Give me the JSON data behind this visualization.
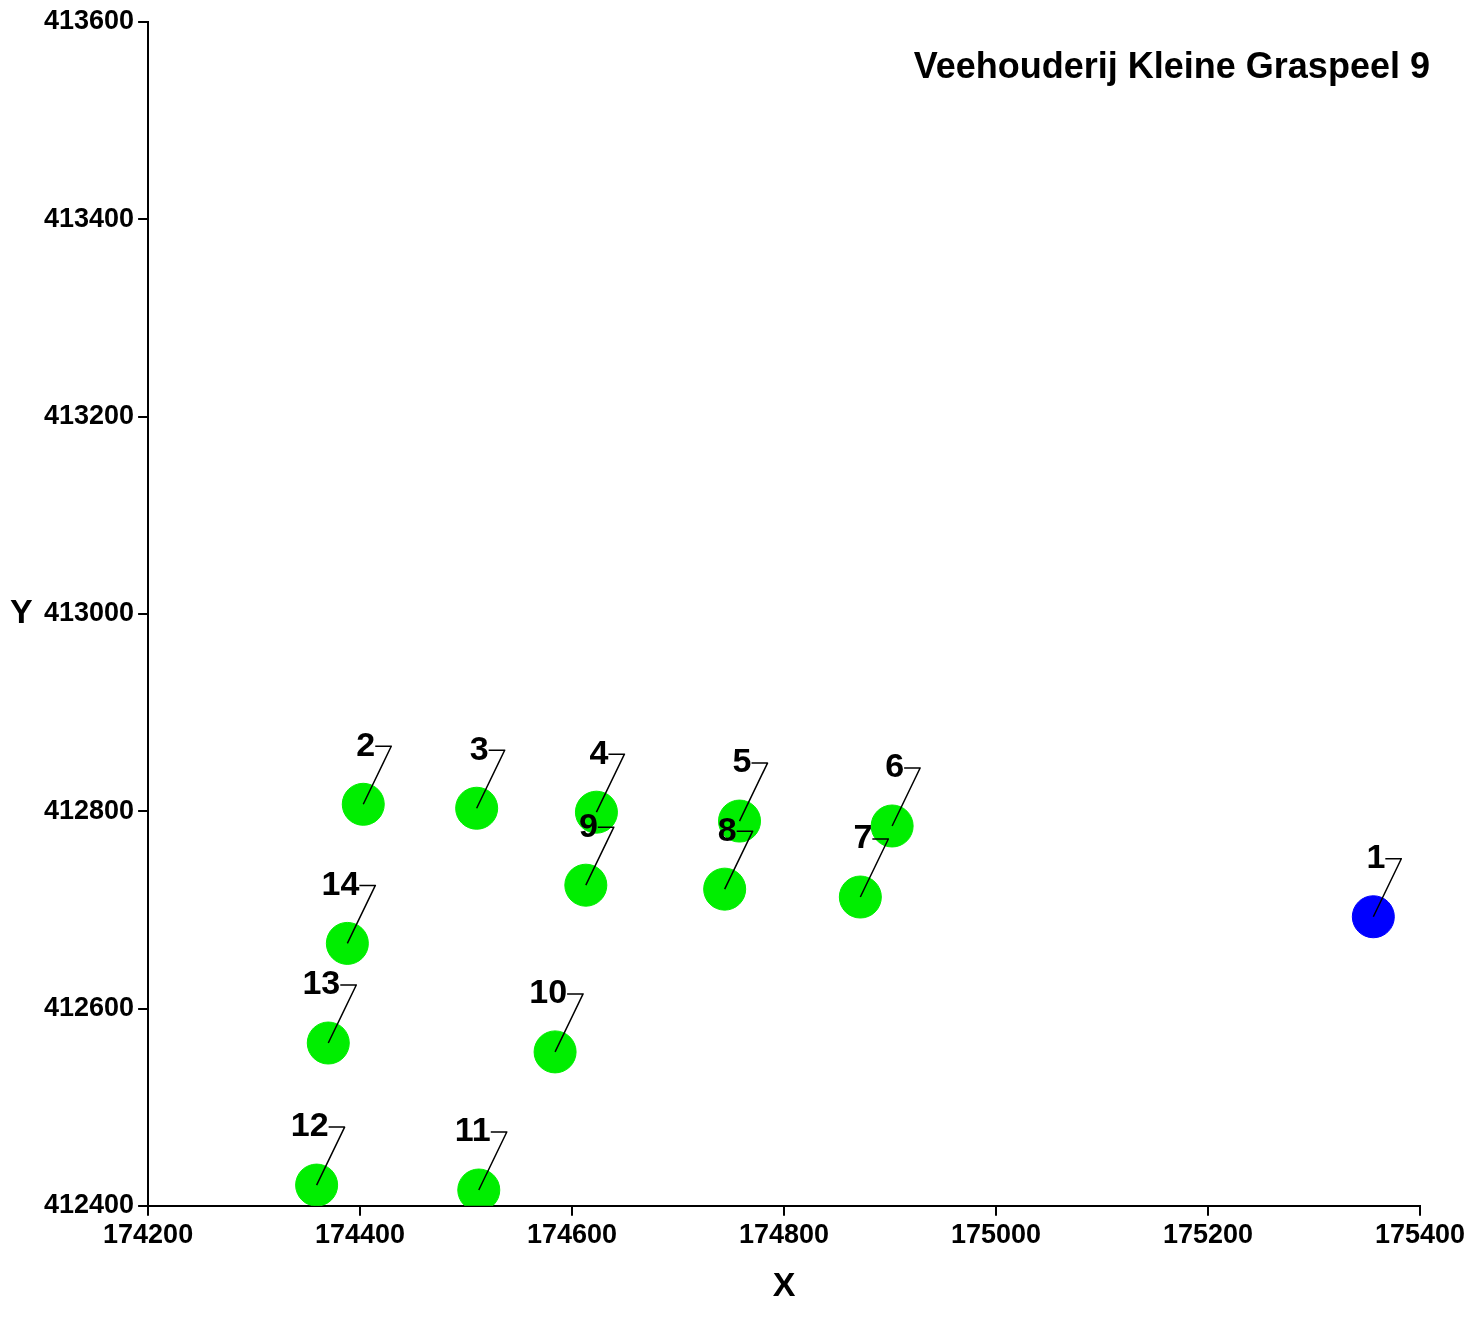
{
  "chart_data": {
    "type": "scatter",
    "title": "Veehouderij Kleine Graspeel 9",
    "xlabel": "X",
    "ylabel": "Y",
    "x": [
      175356,
      174403,
      174510,
      174623,
      174758,
      174902,
      174872,
      174744,
      174613,
      174584,
      174512,
      174359,
      174370,
      174388
    ],
    "series": [
      {
        "values": [
          412693,
          412807,
          412803,
          412799,
          412790,
          412785,
          412713,
          412721,
          412725,
          412556,
          412416,
          412421,
          412565,
          412666
        ],
        "colors": [
          "#0000ff",
          "#00ee00",
          "#00ee00",
          "#00ee00",
          "#00ee00",
          "#00ee00",
          "#00ee00",
          "#00ee00",
          "#00ee00",
          "#00ee00",
          "#00ee00",
          "#00ee00",
          "#00ee00",
          "#00ee00"
        ]
      }
    ],
    "annotations": [
      {
        "text": "1",
        "x": 175356,
        "y": 412693
      },
      {
        "text": "2",
        "x": 174403,
        "y": 412807
      },
      {
        "text": "3",
        "x": 174510,
        "y": 412803
      },
      {
        "text": "4",
        "x": 174623,
        "y": 412799
      },
      {
        "text": "5",
        "x": 174758,
        "y": 412790
      },
      {
        "text": "6",
        "x": 174902,
        "y": 412785
      },
      {
        "text": "7",
        "x": 174872,
        "y": 412713
      },
      {
        "text": "8",
        "x": 174744,
        "y": 412721
      },
      {
        "text": "9",
        "x": 174613,
        "y": 412725
      },
      {
        "text": "10",
        "x": 174584,
        "y": 412556
      },
      {
        "text": "11",
        "x": 174512,
        "y": 412416
      },
      {
        "text": "12",
        "x": 174359,
        "y": 412421
      },
      {
        "text": "13",
        "x": 174370,
        "y": 412565
      },
      {
        "text": "14",
        "x": 174388,
        "y": 412666
      }
    ],
    "xlim": [
      174200,
      175400
    ],
    "xticks": [
      174200,
      174400,
      174600,
      174800,
      175000,
      175200,
      175400
    ],
    "ylim": [
      412400,
      413600
    ],
    "yticks": [
      412400,
      412600,
      412800,
      413000,
      413200,
      413400,
      413600
    ],
    "grid": false,
    "legend": false,
    "marker": "circle"
  }
}
